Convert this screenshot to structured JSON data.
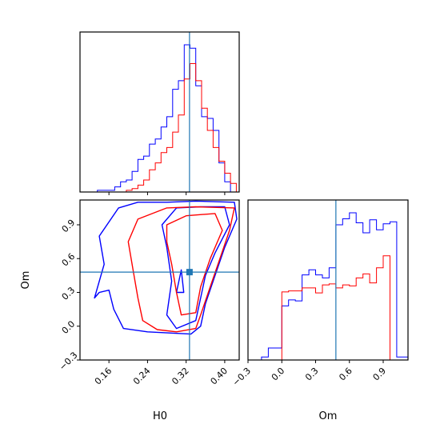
{
  "chart_data": {
    "type": "corner",
    "parameters": [
      "H0",
      "Om"
    ],
    "truth": {
      "H0": 0.327,
      "Om": 0.48
    },
    "colors": {
      "blue": "#0000ff",
      "red": "#ff0000",
      "truth": "#1f77b4"
    },
    "panels": [
      {
        "id": "H0-marginal",
        "type": "histogram",
        "x_param": "H0",
        "xlim": [
          0.1,
          0.43
        ],
        "ticks": [
          0.16,
          0.24,
          0.32,
          0.4
        ],
        "tick_labels_shown": false,
        "bin_edges": [
          0.1,
          0.112,
          0.124,
          0.136,
          0.148,
          0.16,
          0.172,
          0.184,
          0.196,
          0.208,
          0.22,
          0.232,
          0.244,
          0.256,
          0.268,
          0.28,
          0.292,
          0.304,
          0.316,
          0.328,
          0.34,
          0.352,
          0.364,
          0.376,
          0.388,
          0.4,
          0.412,
          0.424,
          0.436
        ],
        "series": [
          {
            "name": "blue",
            "color": "#0000ff",
            "counts": [
              0,
              0,
              0,
              1,
              1,
              1,
              3,
              6,
              7,
              12,
              19,
              21,
              28,
              31,
              38,
              44,
              60,
              65,
              86,
              84,
              62,
              44,
              43,
              36,
              17,
              6,
              0,
              0
            ]
          },
          {
            "name": "red",
            "color": "#ff0000",
            "counts": [
              0,
              0,
              0,
              0,
              0,
              0,
              0,
              0,
              1,
              2,
              4,
              7,
              13,
              17,
              23,
              26,
              35,
              45,
              66,
              75,
              65,
              49,
              36,
              26,
              18,
              11,
              5,
              0
            ]
          }
        ]
      },
      {
        "id": "H0-Om-joint",
        "type": "contour",
        "x_param": "H0",
        "y_param": "Om",
        "xlim": [
          0.1,
          0.43
        ],
        "ylim": [
          -0.3,
          1.12
        ],
        "xticks": [
          0.16,
          0.24,
          0.32,
          0.4
        ],
        "yticks": [
          -0.3,
          0.0,
          0.3,
          0.6,
          0.9
        ],
        "xtick_labels": [
          "0.16",
          "0.24",
          "0.32",
          "0.40"
        ],
        "ytick_labels": [
          "−0.3",
          "0.0",
          "0.3",
          "0.6",
          "0.9"
        ],
        "series": [
          {
            "name": "blue",
            "color": "#0000ff",
            "levels": [
              [
                [
                  0.18,
                  1.05
                ],
                [
                  0.22,
                  1.1
                ],
                [
                  0.28,
                  1.1
                ],
                [
                  0.34,
                  1.11
                ],
                [
                  0.42,
                  1.1
                ],
                [
                  0.425,
                  0.95
                ],
                [
                  0.4,
                  0.7
                ],
                [
                  0.38,
                  0.45
                ],
                [
                  0.36,
                  0.2
                ],
                [
                  0.35,
                  0.0
                ],
                [
                  0.33,
                  -0.07
                ],
                [
                  0.24,
                  -0.05
                ],
                [
                  0.19,
                  -0.02
                ],
                [
                  0.17,
                  0.15
                ],
                [
                  0.16,
                  0.32
                ],
                [
                  0.14,
                  0.3
                ],
                [
                  0.13,
                  0.25
                ],
                [
                  0.15,
                  0.55
                ],
                [
                  0.14,
                  0.8
                ],
                [
                  0.18,
                  1.05
                ]
              ],
              [
                [
                  0.3,
                  1.05
                ],
                [
                  0.35,
                  1.06
                ],
                [
                  0.4,
                  1.06
                ],
                [
                  0.41,
                  0.9
                ],
                [
                  0.38,
                  0.65
                ],
                [
                  0.36,
                  0.45
                ],
                [
                  0.35,
                  0.25
                ],
                [
                  0.34,
                  0.05
                ],
                [
                  0.3,
                  -0.02
                ],
                [
                  0.28,
                  0.1
                ],
                [
                  0.29,
                  0.4
                ],
                [
                  0.28,
                  0.7
                ],
                [
                  0.27,
                  0.9
                ],
                [
                  0.3,
                  1.05
                ]
              ],
              [
                [
                  0.3,
                  0.3
                ],
                [
                  0.31,
                  0.5
                ],
                [
                  0.315,
                  0.3
                ],
                [
                  0.3,
                  0.3
                ]
              ]
            ]
          },
          {
            "name": "red",
            "color": "#ff0000",
            "levels": [
              [
                [
                  0.22,
                  0.95
                ],
                [
                  0.28,
                  1.05
                ],
                [
                  0.34,
                  1.06
                ],
                [
                  0.42,
                  1.05
                ],
                [
                  0.41,
                  0.85
                ],
                [
                  0.39,
                  0.6
                ],
                [
                  0.37,
                  0.35
                ],
                [
                  0.35,
                  0.1
                ],
                [
                  0.34,
                  -0.02
                ],
                [
                  0.3,
                  -0.05
                ],
                [
                  0.26,
                  -0.03
                ],
                [
                  0.23,
                  0.05
                ],
                [
                  0.22,
                  0.25
                ],
                [
                  0.21,
                  0.5
                ],
                [
                  0.2,
                  0.75
                ],
                [
                  0.22,
                  0.95
                ]
              ],
              [
                [
                  0.28,
                  0.9
                ],
                [
                  0.32,
                  0.98
                ],
                [
                  0.38,
                  1.0
                ],
                [
                  0.395,
                  0.85
                ],
                [
                  0.37,
                  0.6
                ],
                [
                  0.35,
                  0.35
                ],
                [
                  0.34,
                  0.12
                ],
                [
                  0.31,
                  0.1
                ],
                [
                  0.3,
                  0.3
                ],
                [
                  0.29,
                  0.55
                ],
                [
                  0.28,
                  0.75
                ],
                [
                  0.28,
                  0.9
                ]
              ]
            ]
          }
        ]
      },
      {
        "id": "Om-marginal",
        "type": "histogram",
        "x_param": "Om",
        "xlim": [
          -0.3,
          1.12
        ],
        "ticks": [
          -0.3,
          0.0,
          0.3,
          0.6,
          0.9
        ],
        "tick_labels": [
          "−0.3",
          "0.0",
          "0.3",
          "0.6",
          "0.9"
        ],
        "bin_edges": [
          -0.3,
          -0.24,
          -0.18,
          -0.12,
          -0.06,
          0.0,
          0.06,
          0.12,
          0.18,
          0.24,
          0.3,
          0.36,
          0.42,
          0.48,
          0.54,
          0.6,
          0.66,
          0.72,
          0.78,
          0.84,
          0.9,
          0.96,
          1.02,
          1.08,
          1.12
        ],
        "series": [
          {
            "name": "blue",
            "color": "#0000ff",
            "counts": [
              0,
              0,
              3,
              12,
              12,
              54,
              60,
              59,
              85,
              90,
              85,
              82,
              92,
              135,
              141,
              147,
              137,
              127,
              140,
              130,
              136,
              138,
              3,
              3
            ]
          },
          {
            "name": "red",
            "color": "#ff0000",
            "counts": [
              0,
              0,
              0,
              0,
              0,
              68,
              69,
              69,
              72,
              72,
              67,
              75,
              76,
              72,
              75,
              74,
              82,
              86,
              77,
              92,
              104,
              0,
              0,
              0
            ]
          }
        ]
      }
    ]
  }
}
